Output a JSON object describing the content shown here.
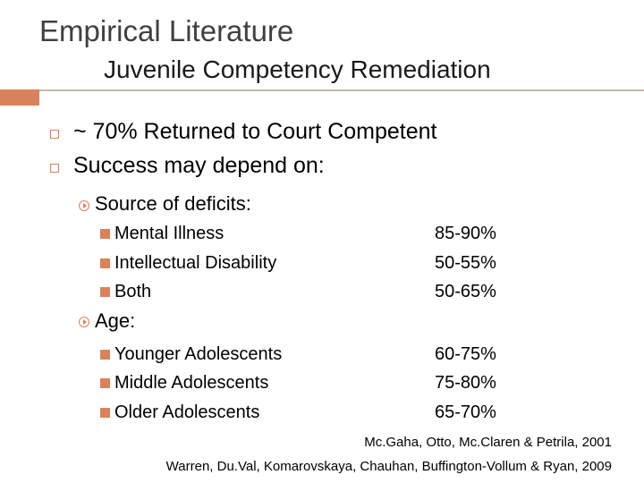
{
  "title": "Empirical Literature",
  "subtitle": "Juvenile Competency Remediation",
  "colors": {
    "accent": "#d9825b",
    "title": "#404040",
    "rule": "#c8b8a8"
  },
  "bullets": [
    "~ 70% Returned to Court Competent",
    "Success may depend on:"
  ],
  "source": {
    "label": "Source of deficits:",
    "items": [
      {
        "label": "Mental Illness",
        "value": "85-90%"
      },
      {
        "label": "Intellectual Disability",
        "value": "50-55%"
      },
      {
        "label": "Both",
        "value": "50-65%"
      }
    ]
  },
  "age": {
    "label": "Age:",
    "items": [
      {
        "label": "Younger Adolescents",
        "value": "60-75%"
      },
      {
        "label": "Middle Adolescents",
        "value": "75-80%"
      },
      {
        "label": "Older Adolescents",
        "value": "65-70%"
      }
    ]
  },
  "citations": [
    "Mc.Gaha, Otto, Mc.Claren & Petrila, 2001",
    "Warren, Du.Val, Komarovskaya, Chauhan, Buffington-Vollum & Ryan, 2009"
  ]
}
